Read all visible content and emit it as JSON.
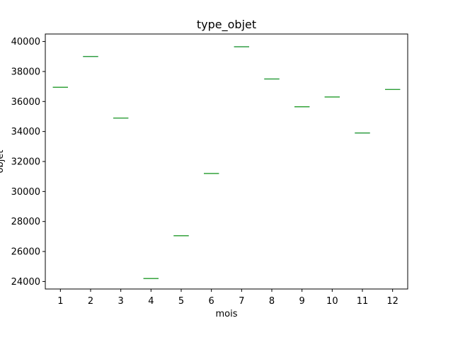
{
  "chart_data": {
    "type": "box",
    "title": "type_objet",
    "xlabel": "mois",
    "ylabel": "objet",
    "categories": [
      "1",
      "2",
      "3",
      "4",
      "5",
      "6",
      "7",
      "8",
      "9",
      "10",
      "11",
      "12"
    ],
    "values": [
      36950,
      39000,
      34900,
      24200,
      27050,
      31200,
      39650,
      37500,
      35650,
      36300,
      33900,
      36800
    ],
    "ylim": [
      23500,
      40500
    ],
    "yticks": [
      24000,
      26000,
      28000,
      30000,
      32000,
      34000,
      36000,
      38000,
      40000
    ],
    "grid": false,
    "colors": {
      "median": "#2ca02c",
      "box": "#1f77b4",
      "axes": "#000000"
    }
  }
}
